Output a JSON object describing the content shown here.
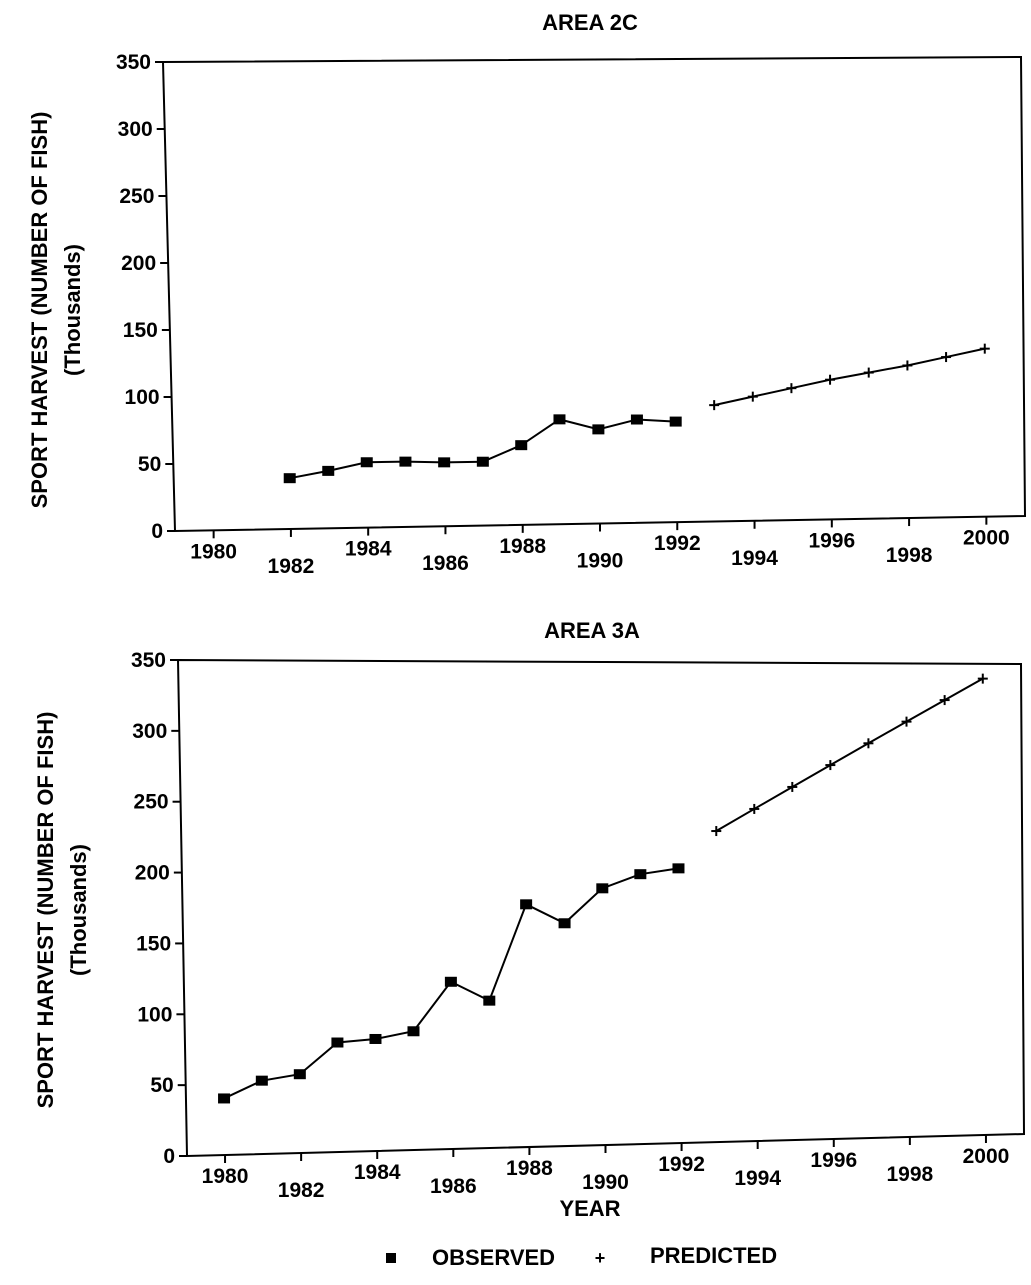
{
  "chart_data": [
    {
      "type": "line",
      "title": "AREA 2C",
      "ylabel_line1": "SPORT HARVEST (NUMBER OF FISH)",
      "ylabel_line2": "(Thousands)",
      "xlabel": "",
      "xlim": [
        1979,
        2001
      ],
      "ylim": [
        0,
        350
      ],
      "x_ticks": [
        1980,
        1982,
        1984,
        1986,
        1988,
        1990,
        1992,
        1994,
        1996,
        1998,
        2000
      ],
      "y_ticks": [
        0,
        50,
        100,
        150,
        200,
        250,
        300,
        350
      ],
      "grid": false,
      "series": [
        {
          "name": "OBSERVED",
          "marker": "square",
          "x": [
            1982,
            1983,
            1984,
            1985,
            1986,
            1987,
            1988,
            1989,
            1990,
            1991,
            1992
          ],
          "y": [
            38,
            43,
            49,
            49,
            48,
            48,
            60,
            79,
            71,
            78,
            76
          ]
        },
        {
          "name": "PREDICTED",
          "marker": "plus",
          "x": [
            1993,
            1994,
            1995,
            1996,
            1997,
            1998,
            1999,
            2000
          ],
          "y": [
            88,
            94,
            100,
            106,
            111,
            116,
            122,
            128
          ]
        }
      ]
    },
    {
      "type": "line",
      "title": "AREA 3A",
      "ylabel_line1": "SPORT HARVEST (NUMBER OF FISH)",
      "ylabel_line2": "(Thousands)",
      "xlabel": "YEAR",
      "xlim": [
        1979,
        2001
      ],
      "ylim": [
        0,
        350
      ],
      "x_ticks": [
        1980,
        1982,
        1984,
        1986,
        1988,
        1990,
        1992,
        1994,
        1996,
        1998,
        2000
      ],
      "y_ticks": [
        0,
        50,
        100,
        150,
        200,
        250,
        300,
        350
      ],
      "grid": false,
      "series": [
        {
          "name": "OBSERVED",
          "marker": "square",
          "x": [
            1980,
            1981,
            1982,
            1983,
            1984,
            1985,
            1986,
            1987,
            1988,
            1989,
            1990,
            1991,
            1992
          ],
          "y": [
            40,
            52,
            56,
            78,
            80,
            85,
            120,
            106,
            175,
            161,
            186,
            196,
            200
          ]
        },
        {
          "name": "PREDICTED",
          "marker": "plus",
          "x": [
            1993,
            1994,
            1995,
            1996,
            1997,
            1998,
            1999,
            2000
          ],
          "y": [
            227,
            243,
            259,
            275,
            291,
            307,
            323,
            339
          ]
        }
      ]
    }
  ],
  "legend": {
    "placement": "bottom-center",
    "observed_label": "OBSERVED",
    "predicted_label": "PREDICTED",
    "separator": "+"
  },
  "colors": {
    "ink": "#000000",
    "background": "#ffffff"
  }
}
